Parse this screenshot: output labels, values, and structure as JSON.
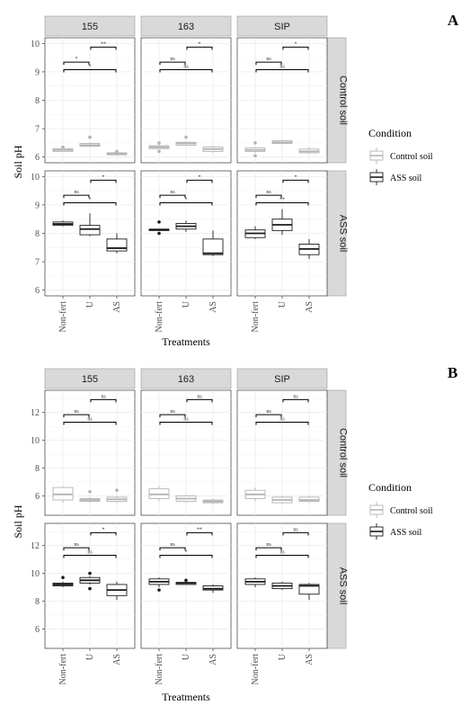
{
  "colors": {
    "control": "#b3b3b3",
    "ass": "#1a1a1a",
    "strip": "#d9d9d9",
    "grid": "#ebebeb"
  },
  "legend": {
    "title": "Condition",
    "items": [
      "Control soil",
      "ASS soil"
    ]
  },
  "columns": [
    "155",
    "163",
    "SIP"
  ],
  "rows": [
    "Control soil",
    "ASS soil"
  ],
  "x_categories": [
    "Non-fert",
    "U",
    "AS"
  ],
  "xlabel": "Treatments",
  "ylabel": "Soil pH",
  "chart_data": [
    {
      "label": "A",
      "type": "boxplot",
      "xlabel": "Treatments",
      "ylabel": "Soil pH",
      "ylim": [
        5.8,
        10.2
      ],
      "yticks": [
        6,
        7,
        8,
        9,
        10
      ],
      "grid": true,
      "legend_position": "right",
      "facets": [
        {
          "row": "Control soil",
          "col": "155",
          "condition": "Control soil",
          "boxes": [
            {
              "q1": 6.2,
              "med": 6.25,
              "q3": 6.3,
              "lo": 6.2,
              "hi": 6.3,
              "out": [
                6.35
              ]
            },
            {
              "q1": 6.38,
              "med": 6.42,
              "q3": 6.48,
              "lo": 6.35,
              "hi": 6.5,
              "out": [
                6.7
              ]
            },
            {
              "q1": 6.08,
              "med": 6.12,
              "q3": 6.15,
              "lo": 6.05,
              "hi": 6.2,
              "out": [
                6.2
              ]
            }
          ],
          "sig": [
            "*",
            "**",
            "*"
          ]
        },
        {
          "row": "Control soil",
          "col": "163",
          "condition": "Control soil",
          "boxes": [
            {
              "q1": 6.3,
              "med": 6.35,
              "q3": 6.4,
              "lo": 6.3,
              "hi": 6.45,
              "out": [
                6.5,
                6.2
              ]
            },
            {
              "q1": 6.42,
              "med": 6.48,
              "q3": 6.52,
              "lo": 6.4,
              "hi": 6.55,
              "out": [
                6.7
              ]
            },
            {
              "q1": 6.2,
              "med": 6.28,
              "q3": 6.35,
              "lo": 6.15,
              "hi": 6.4,
              "out": []
            }
          ],
          "sig": [
            "ns",
            "*",
            "ns"
          ]
        },
        {
          "row": "Control soil",
          "col": "SIP",
          "condition": "Control soil",
          "boxes": [
            {
              "q1": 6.2,
              "med": 6.25,
              "q3": 6.32,
              "lo": 6.15,
              "hi": 6.35,
              "out": [
                6.5,
                6.05
              ]
            },
            {
              "q1": 6.48,
              "med": 6.52,
              "q3": 6.58,
              "lo": 6.45,
              "hi": 6.62,
              "out": []
            },
            {
              "q1": 6.15,
              "med": 6.2,
              "q3": 6.28,
              "lo": 6.1,
              "hi": 6.35,
              "out": []
            }
          ],
          "sig": [
            "ns",
            "*",
            "ns"
          ]
        },
        {
          "row": "ASS soil",
          "col": "155",
          "condition": "ASS soil",
          "boxes": [
            {
              "q1": 8.28,
              "med": 8.33,
              "q3": 8.4,
              "lo": 8.25,
              "hi": 8.45,
              "out": []
            },
            {
              "q1": 7.95,
              "med": 8.15,
              "q3": 8.28,
              "lo": 7.9,
              "hi": 8.7,
              "out": []
            },
            {
              "q1": 7.38,
              "med": 7.48,
              "q3": 7.8,
              "lo": 7.3,
              "hi": 8.0,
              "out": []
            }
          ],
          "sig": [
            "ns",
            "*",
            "*"
          ]
        },
        {
          "row": "ASS soil",
          "col": "163",
          "condition": "ASS soil",
          "boxes": [
            {
              "q1": 8.1,
              "med": 8.12,
              "q3": 8.15,
              "lo": 8.1,
              "hi": 8.15,
              "out": [
                8.4,
                8.0
              ]
            },
            {
              "q1": 8.15,
              "med": 8.25,
              "q3": 8.35,
              "lo": 8.05,
              "hi": 8.45,
              "out": []
            },
            {
              "q1": 7.25,
              "med": 7.3,
              "q3": 7.8,
              "lo": 7.2,
              "hi": 8.1,
              "out": []
            }
          ],
          "sig": [
            "ns",
            "*",
            "*"
          ]
        },
        {
          "row": "ASS soil",
          "col": "SIP",
          "condition": "ASS soil",
          "boxes": [
            {
              "q1": 7.85,
              "med": 8.0,
              "q3": 8.12,
              "lo": 7.8,
              "hi": 8.25,
              "out": []
            },
            {
              "q1": 8.1,
              "med": 8.3,
              "q3": 8.5,
              "lo": 7.95,
              "hi": 8.85,
              "out": []
            },
            {
              "q1": 7.25,
              "med": 7.45,
              "q3": 7.62,
              "lo": 7.1,
              "hi": 7.8,
              "out": []
            }
          ],
          "sig": [
            "ns",
            "*",
            "**"
          ]
        }
      ]
    },
    {
      "label": "B",
      "type": "boxplot",
      "xlabel": "Treatments",
      "ylabel": "Soil pH",
      "ylim": [
        4.6,
        13.6
      ],
      "yticks": [
        6,
        8,
        10,
        12
      ],
      "grid": true,
      "legend_position": "right",
      "facets": [
        {
          "row": "Control soil",
          "col": "155",
          "condition": "Control soil",
          "boxes": [
            {
              "q1": 5.7,
              "med": 6.1,
              "q3": 6.6,
              "lo": 5.5,
              "hi": 6.7,
              "out": []
            },
            {
              "q1": 5.6,
              "med": 5.7,
              "q3": 5.8,
              "lo": 5.5,
              "hi": 5.9,
              "out": [
                6.3
              ]
            },
            {
              "q1": 5.6,
              "med": 5.75,
              "q3": 5.9,
              "lo": 5.5,
              "hi": 6.0,
              "out": [
                6.4
              ]
            }
          ],
          "sig": [
            "ns",
            "ns",
            "ns"
          ]
        },
        {
          "row": "Control soil",
          "col": "163",
          "condition": "Control soil",
          "boxes": [
            {
              "q1": 5.8,
              "med": 6.1,
              "q3": 6.5,
              "lo": 5.6,
              "hi": 6.7,
              "out": []
            },
            {
              "q1": 5.6,
              "med": 5.8,
              "q3": 6.0,
              "lo": 5.5,
              "hi": 6.1,
              "out": []
            },
            {
              "q1": 5.5,
              "med": 5.6,
              "q3": 5.7,
              "lo": 5.4,
              "hi": 5.8,
              "out": []
            }
          ],
          "sig": [
            "ns",
            "ns",
            "ns"
          ]
        },
        {
          "row": "Control soil",
          "col": "SIP",
          "condition": "Control soil",
          "boxes": [
            {
              "q1": 5.8,
              "med": 6.1,
              "q3": 6.4,
              "lo": 5.6,
              "hi": 6.6,
              "out": []
            },
            {
              "q1": 5.5,
              "med": 5.7,
              "q3": 5.9,
              "lo": 5.4,
              "hi": 6.0,
              "out": []
            },
            {
              "q1": 5.6,
              "med": 5.7,
              "q3": 5.9,
              "lo": 5.5,
              "hi": 6.0,
              "out": []
            }
          ],
          "sig": [
            "ns",
            "ns",
            "ns"
          ]
        },
        {
          "row": "ASS soil",
          "col": "155",
          "condition": "ASS soil",
          "boxes": [
            {
              "q1": 9.1,
              "med": 9.2,
              "q3": 9.3,
              "lo": 9.0,
              "hi": 9.4,
              "out": [
                9.7
              ]
            },
            {
              "q1": 9.3,
              "med": 9.5,
              "q3": 9.7,
              "lo": 9.2,
              "hi": 9.8,
              "out": [
                10.0,
                8.9
              ]
            },
            {
              "q1": 8.4,
              "med": 8.8,
              "q3": 9.2,
              "lo": 8.1,
              "hi": 9.4,
              "out": []
            }
          ],
          "sig": [
            "ns",
            "*",
            "ns"
          ]
        },
        {
          "row": "ASS soil",
          "col": "163",
          "condition": "ASS soil",
          "boxes": [
            {
              "q1": 9.2,
              "med": 9.4,
              "q3": 9.6,
              "lo": 9.0,
              "hi": 9.7,
              "out": [
                8.8
              ]
            },
            {
              "q1": 9.2,
              "med": 9.3,
              "q3": 9.35,
              "lo": 9.2,
              "hi": 9.4,
              "out": [
                9.5
              ]
            },
            {
              "q1": 8.8,
              "med": 8.9,
              "q3": 9.1,
              "lo": 8.6,
              "hi": 9.2,
              "out": []
            }
          ],
          "sig": [
            "ns",
            "**",
            "*"
          ]
        },
        {
          "row": "ASS soil",
          "col": "SIP",
          "condition": "ASS soil",
          "boxes": [
            {
              "q1": 9.2,
              "med": 9.4,
              "q3": 9.6,
              "lo": 9.0,
              "hi": 9.7,
              "out": []
            },
            {
              "q1": 8.9,
              "med": 9.1,
              "q3": 9.3,
              "lo": 8.8,
              "hi": 9.4,
              "out": []
            },
            {
              "q1": 8.5,
              "med": 9.1,
              "q3": 9.2,
              "lo": 8.1,
              "hi": 9.3,
              "out": []
            }
          ],
          "sig": [
            "ns",
            "ns",
            "ns"
          ]
        }
      ]
    }
  ]
}
